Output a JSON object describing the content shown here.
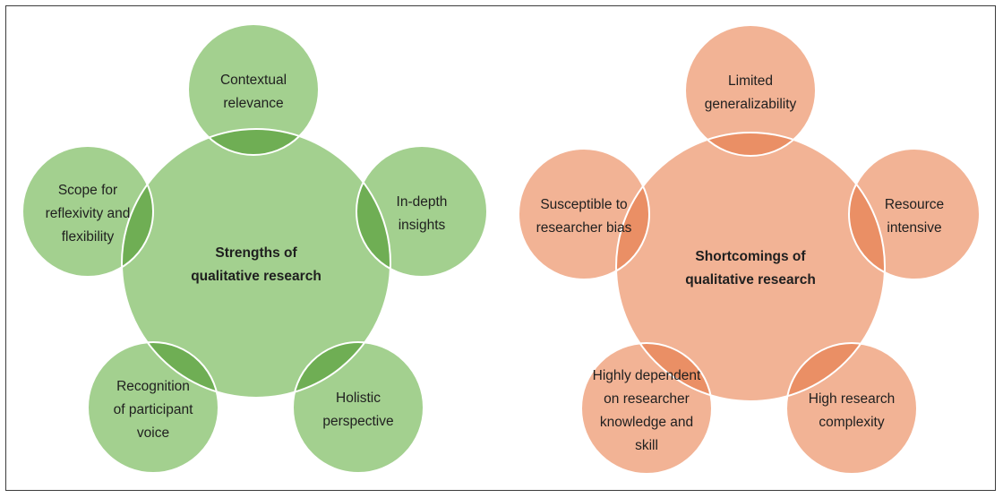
{
  "colors": {
    "green_fill": "#a3d08f",
    "green_overlap": "#6fae54",
    "orange_fill": "#f2b395",
    "orange_overlap": "#ea8f65",
    "outline": "#ffffff",
    "border": "#3c3c3c"
  },
  "strengths": {
    "center_lines": [
      "Strengths of",
      "qualitative research"
    ],
    "nodes": [
      {
        "lines": [
          "Contextual",
          "relevance"
        ]
      },
      {
        "lines": [
          "In-depth",
          "insights"
        ]
      },
      {
        "lines": [
          "Holistic",
          "perspective"
        ]
      },
      {
        "lines": [
          "Recognition",
          "of participant",
          "voice"
        ]
      },
      {
        "lines": [
          "Scope for",
          "reflexivity and",
          "flexibility"
        ]
      }
    ]
  },
  "shortcomings": {
    "center_lines": [
      "Shortcomings of",
      "qualitative research"
    ],
    "nodes": [
      {
        "lines": [
          "Limited",
          "generalizability"
        ]
      },
      {
        "lines": [
          "Resource",
          "intensive"
        ]
      },
      {
        "lines": [
          "High research",
          "complexity"
        ]
      },
      {
        "lines": [
          "Highly dependent",
          "on researcher",
          "knowledge and",
          "skill"
        ]
      },
      {
        "lines": [
          "Susceptible to",
          "researcher bias"
        ]
      }
    ]
  }
}
